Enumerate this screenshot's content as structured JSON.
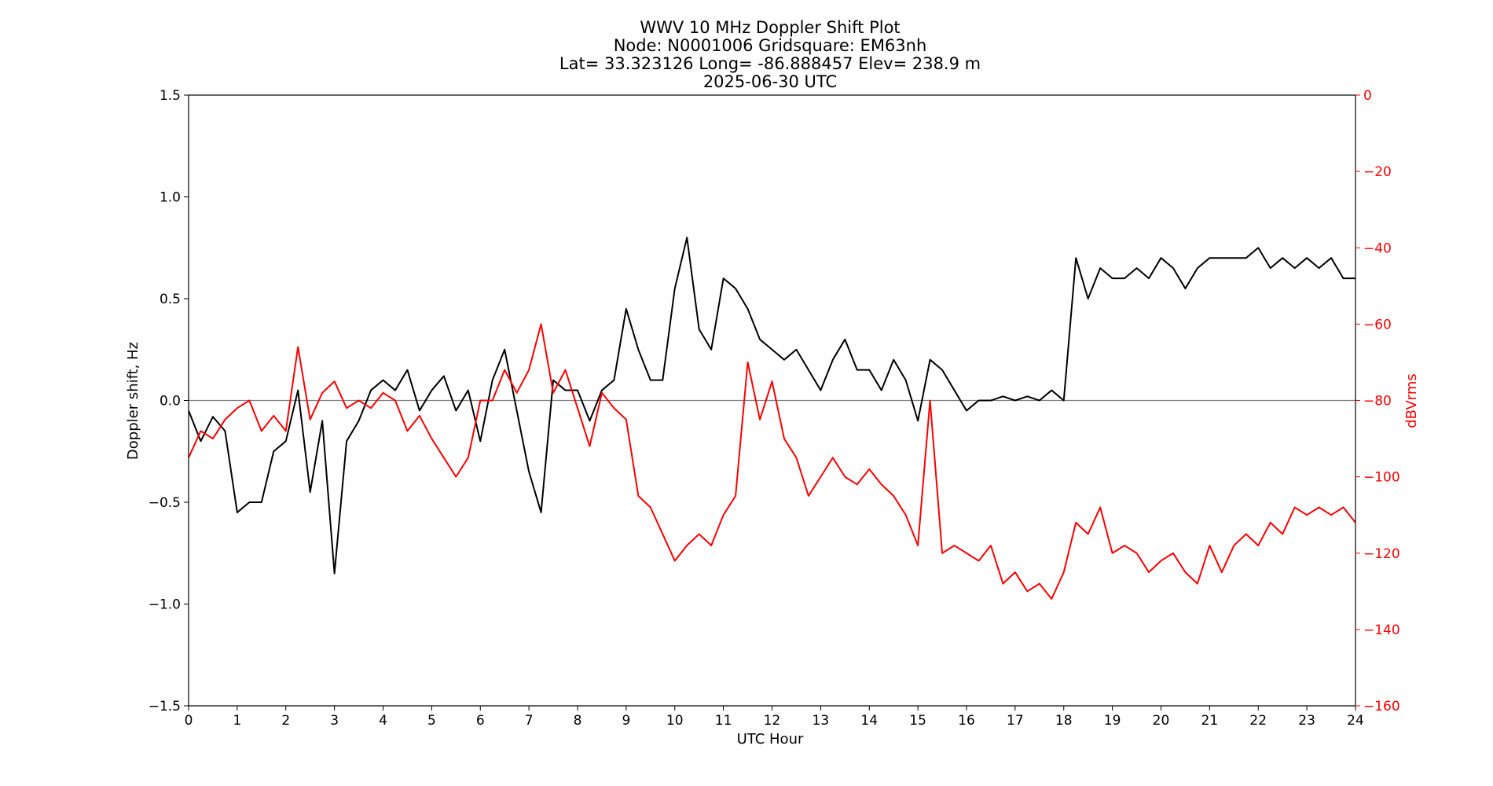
{
  "chart_data": {
    "type": "line",
    "title_lines": [
      "WWV 10 MHz Doppler Shift Plot",
      "Node:  N0001006     Gridsquare:  EM63nh",
      "Lat= 33.323126    Long= -86.888457    Elev= 238.9 m",
      "2025-06-30  UTC"
    ],
    "xlabel": "UTC Hour",
    "ylabel_left": "Doppler shift, Hz",
    "ylabel_right": "dBVrms",
    "xlim": [
      0,
      24
    ],
    "ylim_left": [
      -1.5,
      1.5
    ],
    "ylim_right": [
      -160,
      0
    ],
    "x_ticks": [
      "0",
      "1",
      "2",
      "3",
      "4",
      "5",
      "6",
      "7",
      "8",
      "9",
      "10",
      "11",
      "12",
      "13",
      "14",
      "15",
      "16",
      "17",
      "18",
      "19",
      "20",
      "21",
      "22",
      "23",
      "24"
    ],
    "y_left_ticks": [
      "1.5",
      "1.0",
      "0.5",
      "0.0",
      "−0.5",
      "−1.0",
      "−1.5"
    ],
    "y_right_ticks": [
      "0",
      "−20",
      "−40",
      "−60",
      "−80",
      "−100",
      "−120",
      "−140",
      "−160"
    ],
    "zero_line": 0.0,
    "colors": {
      "doppler": "#000000",
      "power": "#ff0000",
      "zero_line": "#808080"
    },
    "series": [
      {
        "axis": "left",
        "x": [
          0,
          0.25,
          0.5,
          0.75,
          1.0,
          1.25,
          1.5,
          1.75,
          2.0,
          2.25,
          2.5,
          2.75,
          3.0,
          3.25,
          3.5,
          3.75,
          4.0,
          4.25,
          4.5,
          4.75,
          5.0,
          5.25,
          5.5,
          5.75,
          6.0,
          6.25,
          6.5,
          6.75,
          7.0,
          7.25,
          7.5,
          7.75,
          8.0,
          8.25,
          8.5,
          8.75,
          9.0,
          9.25,
          9.5,
          9.75,
          10.0,
          10.25,
          10.5,
          10.75,
          11.0,
          11.25,
          11.5,
          11.75,
          12.0,
          12.25,
          12.5,
          12.75,
          13.0,
          13.25,
          13.5,
          13.75,
          14.0,
          14.25,
          14.5,
          14.75,
          15.0,
          15.25,
          15.5,
          15.75,
          16.0,
          16.25,
          16.5,
          16.75,
          17.0,
          17.25,
          17.5,
          17.75,
          18.0,
          18.25,
          18.5,
          18.75,
          19.0,
          19.25,
          19.5,
          19.75,
          20.0,
          20.25,
          20.5,
          20.75,
          21.0,
          21.25,
          21.5,
          21.75,
          22.0,
          22.25,
          22.5,
          22.75,
          23.0,
          23.25,
          23.5,
          23.75,
          24.0
        ],
        "values": [
          -0.05,
          -0.2,
          -0.08,
          -0.15,
          -0.55,
          -0.5,
          -0.5,
          -0.25,
          -0.2,
          0.05,
          -0.45,
          -0.1,
          -0.85,
          -0.2,
          -0.1,
          0.05,
          0.1,
          0.05,
          0.15,
          -0.05,
          0.05,
          0.12,
          -0.05,
          0.05,
          -0.2,
          0.1,
          0.25,
          -0.05,
          -0.35,
          -0.55,
          0.1,
          0.05,
          0.05,
          -0.1,
          0.05,
          0.1,
          0.45,
          0.25,
          0.1,
          0.1,
          0.55,
          0.8,
          0.35,
          0.25,
          0.6,
          0.55,
          0.45,
          0.3,
          0.25,
          0.2,
          0.25,
          0.15,
          0.05,
          0.2,
          0.3,
          0.15,
          0.15,
          0.05,
          0.2,
          0.1,
          -0.1,
          0.2,
          0.15,
          0.05,
          -0.05,
          0.0,
          0.0,
          0.02,
          0.0,
          0.02,
          0.0,
          0.05,
          0.0,
          0.7,
          0.5,
          0.65,
          0.6,
          0.6,
          0.65,
          0.6,
          0.7,
          0.65,
          0.55,
          0.65,
          0.7,
          0.7,
          0.7,
          0.7,
          0.75,
          0.65,
          0.7,
          0.65,
          0.7,
          0.65,
          0.7,
          0.6,
          0.6
        ]
      },
      {
        "axis": "right",
        "x": [
          0,
          0.25,
          0.5,
          0.75,
          1.0,
          1.25,
          1.5,
          1.75,
          2.0,
          2.25,
          2.5,
          2.75,
          3.0,
          3.25,
          3.5,
          3.75,
          4.0,
          4.25,
          4.5,
          4.75,
          5.0,
          5.25,
          5.5,
          5.75,
          6.0,
          6.25,
          6.5,
          6.75,
          7.0,
          7.25,
          7.5,
          7.75,
          8.0,
          8.25,
          8.5,
          8.75,
          9.0,
          9.25,
          9.5,
          9.75,
          10.0,
          10.25,
          10.5,
          10.75,
          11.0,
          11.25,
          11.5,
          11.75,
          12.0,
          12.25,
          12.5,
          12.75,
          13.0,
          13.25,
          13.5,
          13.75,
          14.0,
          14.25,
          14.5,
          14.75,
          15.0,
          15.25,
          15.5,
          15.75,
          16.0,
          16.25,
          16.5,
          16.75,
          17.0,
          17.25,
          17.5,
          17.75,
          18.0,
          18.25,
          18.5,
          18.75,
          19.0,
          19.25,
          19.5,
          19.75,
          20.0,
          20.25,
          20.5,
          20.75,
          21.0,
          21.25,
          21.5,
          21.75,
          22.0,
          22.25,
          22.5,
          22.75,
          23.0,
          23.25,
          23.5,
          23.75,
          24.0
        ],
        "values": [
          -95,
          -88,
          -90,
          -85,
          -82,
          -80,
          -88,
          -84,
          -88,
          -66,
          -85,
          -78,
          -75,
          -82,
          -80,
          -82,
          -78,
          -80,
          -88,
          -84,
          -90,
          -95,
          -100,
          -95,
          -80,
          -80,
          -72,
          -78,
          -72,
          -60,
          -78,
          -72,
          -82,
          -92,
          -78,
          -82,
          -85,
          -105,
          -108,
          -115,
          -122,
          -118,
          -115,
          -118,
          -110,
          -105,
          -70,
          -85,
          -75,
          -90,
          -95,
          -105,
          -100,
          -95,
          -100,
          -102,
          -98,
          -102,
          -105,
          -110,
          -118,
          -80,
          -120,
          -118,
          -120,
          -122,
          -118,
          -128,
          -125,
          -130,
          -128,
          -132,
          -125,
          -112,
          -115,
          -108,
          -120,
          -118,
          -120,
          -125,
          -122,
          -120,
          -125,
          -128,
          -118,
          -125,
          -118,
          -115,
          -118,
          -112,
          -115,
          -108,
          -110,
          -108,
          -110,
          -108,
          -112
        ]
      }
    ]
  }
}
